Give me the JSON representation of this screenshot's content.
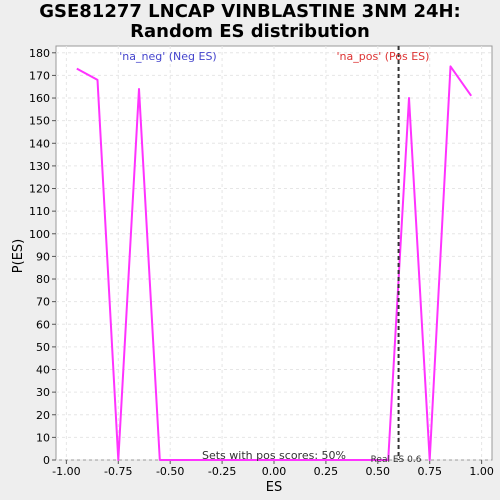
{
  "title_line1": "GSE81277 LNCAP VINBLASTINE 3NM 24H:",
  "title_line2": "Random ES distribution",
  "chart_data": {
    "type": "line",
    "xlabel": "ES",
    "ylabel": "P(ES)",
    "xlim": [
      -1.05,
      1.05
    ],
    "ylim": [
      0,
      183
    ],
    "xticks": [
      -1.0,
      -0.75,
      -0.5,
      -0.25,
      0.0,
      0.25,
      0.5,
      0.75,
      1.0
    ],
    "xtick_labels": [
      "-1.00",
      "-0.75",
      "-0.50",
      "-0.25",
      "0.00",
      "0.25",
      "0.50",
      "0.75",
      "1.00"
    ],
    "yticks": [
      0,
      10,
      20,
      30,
      40,
      50,
      60,
      70,
      80,
      90,
      100,
      110,
      120,
      130,
      140,
      150,
      160,
      170,
      180
    ],
    "grid": true,
    "series": [
      {
        "color": "#ff33ff",
        "x": [
          -0.95,
          -0.85,
          -0.75,
          -0.65,
          -0.55,
          -0.45,
          -0.35,
          -0.25,
          -0.15,
          -0.05,
          0.05,
          0.15,
          0.25,
          0.35,
          0.45,
          0.55,
          0.65,
          0.75,
          0.85,
          0.95
        ],
        "y": [
          173,
          168,
          0,
          164,
          0,
          0,
          0,
          0,
          0,
          0,
          0,
          0,
          0,
          0,
          0,
          0,
          160,
          0,
          174,
          161
        ]
      }
    ],
    "real_es": 0.6,
    "annotations": {
      "neg_label": "'na_neg' (Neg ES)",
      "pos_label": "'na_pos' (Pos ES)",
      "real_es_label": "Real ES 0.6",
      "sets_label": "Sets with pos scores: 50%"
    },
    "colors": {
      "neg_label": "#4444cc",
      "pos_label": "#dd3333",
      "line": "#ff33ff",
      "real_es_line": "#333333"
    }
  }
}
